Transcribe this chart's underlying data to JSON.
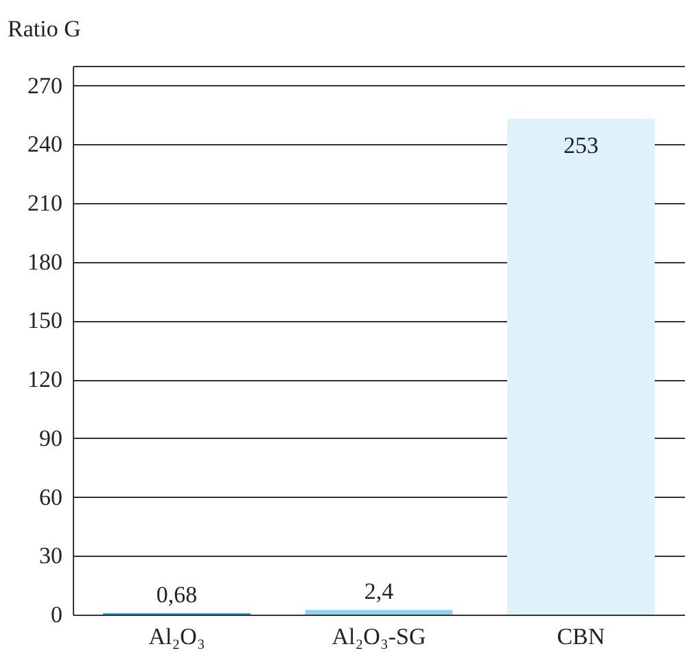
{
  "chart_data": {
    "type": "bar",
    "ylabel": "Ratio G",
    "categories": [
      "Al₂O₃",
      "Al₂O₃-SG",
      "CBN"
    ],
    "values": [
      0.68,
      2.4,
      253
    ],
    "colors": [
      "#1a9ee0",
      "#8fd3f2",
      "#dff2fb"
    ],
    "value_labels": [
      "0,68",
      "2,4",
      "253"
    ],
    "ylim": [
      0,
      280
    ],
    "yticks": [
      0,
      30,
      60,
      90,
      120,
      150,
      180,
      210,
      240,
      270,
      {
        "value": 280,
        "label": null
      }
    ],
    "grid": "y"
  }
}
